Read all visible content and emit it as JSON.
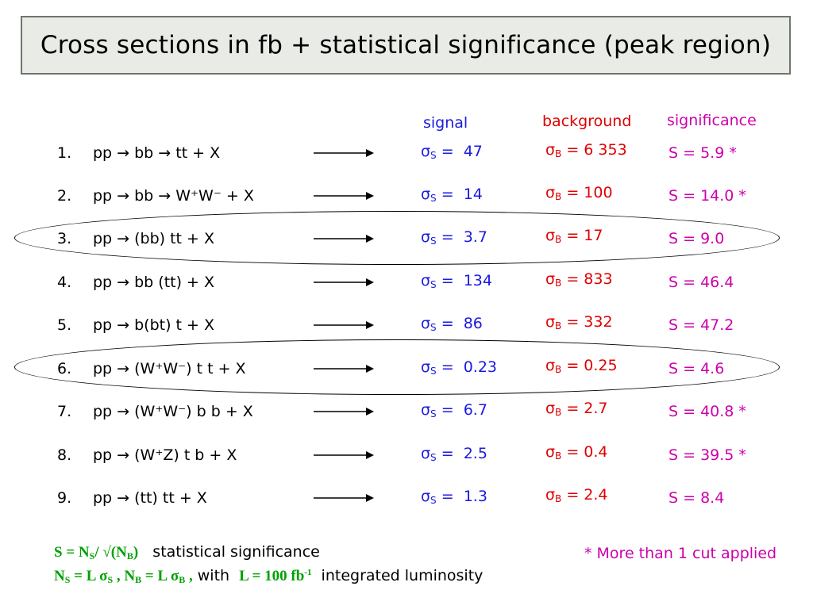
{
  "title": "Cross sections in fb + statistical significance  (peak region)",
  "headers": {
    "signal": "signal",
    "background": "background",
    "significance": "significance"
  },
  "symbols": {
    "sigma": "σ",
    "sub_s": "S",
    "sub_b": "B",
    "S_prefix": "S = "
  },
  "rows": [
    {
      "num": "1.",
      "process": "pp → bb → tt + X",
      "signal": "47",
      "background": "6 353",
      "significance": "5.9 *"
    },
    {
      "num": "2.",
      "process": "pp → bb  → W⁺W⁻ + X",
      "signal": "14",
      "background": "100",
      "significance": "14.0 *"
    },
    {
      "num": "3.",
      "process": "pp  → (bb) tt + X",
      "signal": "3.7",
      "background": "17",
      "significance": "9.0"
    },
    {
      "num": "4.",
      "process": "pp  → bb (tt) + X",
      "signal": "134",
      "background": "833",
      "significance": "46.4"
    },
    {
      "num": "5.",
      "process": "pp  → b(bt) t + X",
      "signal": "86",
      "background": "332",
      "significance": "47.2"
    },
    {
      "num": "6.",
      "process": "pp  → (W⁺W⁻) t t + X",
      "signal": "0.23",
      "background": "0.25",
      "significance": "4.6"
    },
    {
      "num": "7.",
      "process": "pp  → (W⁺W⁻) b b + X",
      "signal": "6.7",
      "background": "2.7",
      "significance": "40.8 *"
    },
    {
      "num": "8.",
      "process": "pp  → (W⁺Z) t b + X",
      "signal": "2.5",
      "background": "0.4",
      "significance": "39.5 *"
    },
    {
      "num": "9.",
      "process": "pp  → (tt) tt + X",
      "signal": "1.3",
      "background": "2.4",
      "significance": "8.4"
    }
  ],
  "footer": {
    "formula1": "S = NS/ √(NB)",
    "desc1": "statistical significance",
    "formula2": "NS = L σS , NB = L σB ,",
    "with": "with",
    "lumi": "L = 100 fb-1",
    "desc2": "integrated luminosity",
    "note": "* More than 1 cut applied"
  },
  "highlighted_rows": [
    "3.",
    "6."
  ],
  "colors": {
    "signal": "#1a1ae0",
    "background": "#e00000",
    "significance": "#cc00aa",
    "formula": "#00a000",
    "title_bg": "#e8ebe6"
  }
}
